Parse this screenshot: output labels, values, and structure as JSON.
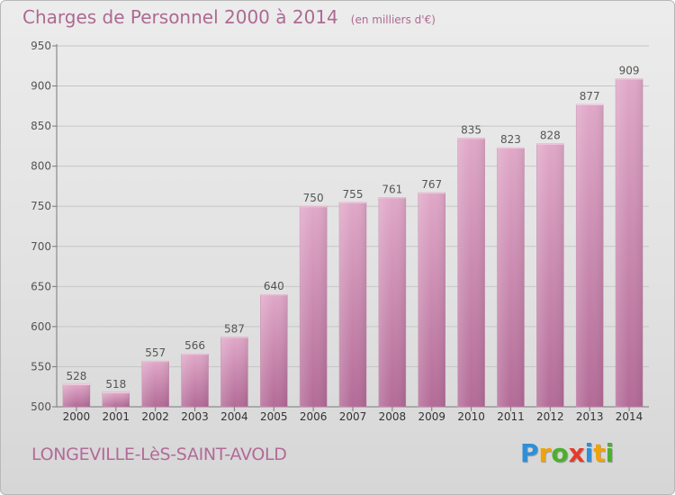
{
  "chart_data": {
    "type": "bar",
    "title": "Charges de Personnel 2000 à 2014",
    "subtitle": "(en milliers d'€)",
    "categories": [
      "2000",
      "2001",
      "2002",
      "2003",
      "2004",
      "2005",
      "2006",
      "2007",
      "2008",
      "2009",
      "2010",
      "2011",
      "2012",
      "2013",
      "2014"
    ],
    "values": [
      528,
      518,
      557,
      566,
      587,
      640,
      750,
      755,
      761,
      767,
      835,
      823,
      828,
      877,
      909
    ],
    "ylim": [
      500,
      950
    ],
    "yticks": [
      500,
      550,
      600,
      650,
      700,
      750,
      800,
      850,
      900,
      950
    ],
    "grid": true,
    "bar_color": "#d79bbd",
    "bar_color_dark": "#b36b97"
  },
  "commune": "LONGEVILLE-LèS-SAINT-AVOLD",
  "logo": {
    "letters": [
      "P",
      "r",
      "o",
      "x",
      "i",
      "t",
      "i"
    ],
    "colors": [
      "#2f8fd8",
      "#f0a20a",
      "#4caf2d",
      "#e53b2c",
      "#2f8fd8",
      "#f0a20a",
      "#4caf2d"
    ]
  }
}
